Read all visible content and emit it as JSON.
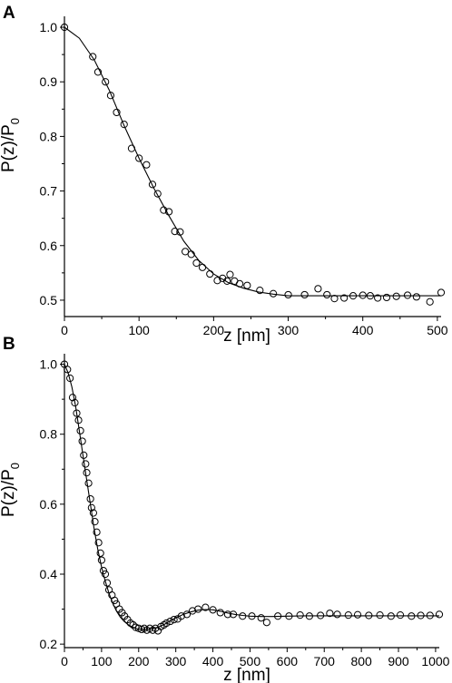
{
  "chart_data": [
    {
      "panel": "A",
      "type": "scatter",
      "xlabel": "z [nm]",
      "ylabel_main": "P(z)/P",
      "ylabel_sub": "0",
      "xlim": [
        0,
        505
      ],
      "ylim": [
        0.47,
        1.02
      ],
      "xticks": [
        0,
        100,
        200,
        300,
        400,
        500
      ],
      "yticks": [
        0.5,
        0.6,
        0.7,
        0.8,
        0.9,
        1.0
      ],
      "grid": false,
      "points": {
        "x": [
          0,
          38,
          45,
          55,
          62,
          70,
          80,
          90,
          100,
          110,
          118,
          125,
          133,
          140,
          148,
          155,
          162,
          170,
          177,
          185,
          195,
          205,
          212,
          218,
          222,
          228,
          235,
          245,
          262,
          280,
          300,
          322,
          340,
          352,
          362,
          375,
          387,
          400,
          410,
          420,
          432,
          445,
          460,
          472,
          490,
          505
        ],
        "y": [
          1.0,
          0.946,
          0.918,
          0.9,
          0.875,
          0.844,
          0.822,
          0.778,
          0.76,
          0.748,
          0.712,
          0.695,
          0.665,
          0.662,
          0.626,
          0.625,
          0.589,
          0.584,
          0.568,
          0.56,
          0.548,
          0.536,
          0.54,
          0.535,
          0.547,
          0.535,
          0.53,
          0.527,
          0.518,
          0.512,
          0.51,
          0.51,
          0.521,
          0.51,
          0.503,
          0.504,
          0.508,
          0.509,
          0.508,
          0.504,
          0.505,
          0.507,
          0.509,
          0.506,
          0.497,
          0.514
        ]
      },
      "fit": {
        "x": [
          0,
          20,
          40,
          60,
          80,
          100,
          120,
          140,
          160,
          180,
          200,
          220,
          240,
          260,
          280,
          300,
          340,
          380,
          420,
          460,
          505
        ],
        "y": [
          1.0,
          0.98,
          0.94,
          0.885,
          0.82,
          0.76,
          0.705,
          0.655,
          0.608,
          0.573,
          0.548,
          0.532,
          0.522,
          0.515,
          0.511,
          0.508,
          0.508,
          0.508,
          0.508,
          0.508,
          0.508
        ]
      }
    },
    {
      "panel": "B",
      "type": "scatter",
      "xlabel": "z [nm]",
      "ylabel_main": "P(z)/P",
      "ylabel_sub": "0",
      "xlim": [
        0,
        1010
      ],
      "ylim": [
        0.19,
        1.03
      ],
      "xticks": [
        0,
        100,
        200,
        300,
        400,
        500,
        600,
        700,
        800,
        900,
        1000
      ],
      "yticks": [
        0.2,
        0.4,
        0.6,
        0.8,
        1.0
      ],
      "grid": false,
      "points": {
        "x": [
          0,
          8,
          15,
          22,
          28,
          33,
          38,
          43,
          48,
          52,
          57,
          60,
          65,
          70,
          73,
          78,
          82,
          87,
          92,
          97,
          100,
          105,
          110,
          115,
          120,
          128,
          135,
          140,
          148,
          155,
          162,
          170,
          178,
          185,
          192,
          200,
          208,
          215,
          222,
          230,
          238,
          245,
          252,
          260,
          268,
          275,
          285,
          295,
          305,
          315,
          330,
          345,
          360,
          380,
          400,
          420,
          440,
          455,
          480,
          505,
          530,
          545,
          575,
          605,
          635,
          660,
          690,
          715,
          735,
          765,
          790,
          820,
          850,
          880,
          905,
          935,
          960,
          985,
          1010
        ],
        "y": [
          1.0,
          0.985,
          0.96,
          0.905,
          0.89,
          0.86,
          0.84,
          0.81,
          0.78,
          0.74,
          0.715,
          0.69,
          0.66,
          0.615,
          0.59,
          0.575,
          0.55,
          0.52,
          0.49,
          0.46,
          0.44,
          0.41,
          0.4,
          0.375,
          0.355,
          0.34,
          0.325,
          0.315,
          0.3,
          0.29,
          0.28,
          0.27,
          0.26,
          0.255,
          0.248,
          0.245,
          0.242,
          0.245,
          0.24,
          0.245,
          0.24,
          0.245,
          0.238,
          0.25,
          0.255,
          0.26,
          0.265,
          0.27,
          0.272,
          0.28,
          0.285,
          0.295,
          0.3,
          0.305,
          0.298,
          0.29,
          0.285,
          0.285,
          0.28,
          0.28,
          0.275,
          0.262,
          0.28,
          0.28,
          0.283,
          0.28,
          0.282,
          0.288,
          0.285,
          0.283,
          0.284,
          0.282,
          0.283,
          0.28,
          0.283,
          0.28,
          0.282,
          0.282,
          0.285
        ]
      },
      "fit": {
        "x": [
          0,
          10,
          20,
          30,
          40,
          50,
          60,
          70,
          80,
          90,
          100,
          110,
          120,
          130,
          140,
          150,
          160,
          170,
          180,
          190,
          200,
          210,
          220,
          230,
          240,
          250,
          260,
          270,
          280,
          290,
          300,
          320,
          340,
          360,
          380,
          400,
          420,
          440,
          460,
          480,
          500,
          530,
          560,
          600,
          650,
          700,
          800,
          900,
          1010
        ],
        "y": [
          1.0,
          0.975,
          0.935,
          0.88,
          0.81,
          0.74,
          0.67,
          0.6,
          0.53,
          0.47,
          0.42,
          0.38,
          0.345,
          0.317,
          0.295,
          0.278,
          0.266,
          0.257,
          0.25,
          0.246,
          0.243,
          0.242,
          0.242,
          0.243,
          0.245,
          0.248,
          0.252,
          0.257,
          0.263,
          0.269,
          0.275,
          0.285,
          0.292,
          0.297,
          0.299,
          0.298,
          0.294,
          0.289,
          0.285,
          0.282,
          0.28,
          0.279,
          0.279,
          0.28,
          0.281,
          0.281,
          0.281,
          0.281,
          0.281
        ]
      }
    }
  ]
}
